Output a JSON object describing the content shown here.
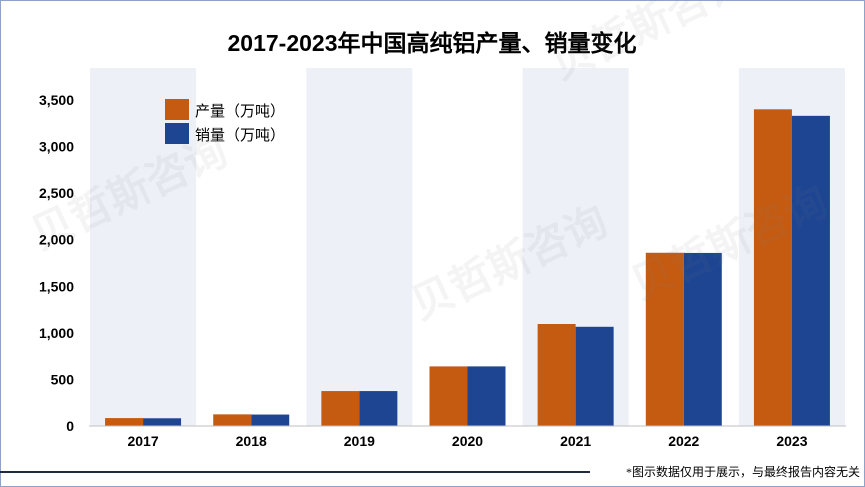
{
  "chart_data": {
    "type": "bar",
    "title": "2017-2023年中国高纯铝产量、销量变化",
    "xlabel": "",
    "ylabel": "",
    "categories": [
      "2017",
      "2018",
      "2019",
      "2020",
      "2021",
      "2022",
      "2023"
    ],
    "series": [
      {
        "name": "产量（万吨）",
        "color": "#C55A11",
        "values": [
          85,
          125,
          375,
          640,
          1095,
          1860,
          3400
        ]
      },
      {
        "name": "销量（万吨）",
        "color": "#1E4592",
        "values": [
          83,
          123,
          375,
          640,
          1065,
          1858,
          3330
        ]
      }
    ],
    "ylim": [
      0,
      3500
    ],
    "yticks": [
      {
        "value": 0,
        "label": "0"
      },
      {
        "value": 500,
        "label": "500"
      },
      {
        "value": 1000,
        "label": "1,000"
      },
      {
        "value": 1500,
        "label": "1,500"
      },
      {
        "value": 2000,
        "label": "2,000"
      },
      {
        "value": 2500,
        "label": "2,500"
      },
      {
        "value": 3000,
        "label": "3,000"
      },
      {
        "value": 3500,
        "label": "3,500"
      }
    ],
    "grid": false,
    "legend": "top-left",
    "colors": {
      "band": "#EDF1F7",
      "axis": "#BFBFBF",
      "rule": "#1F2A44",
      "border": "#8EA3C8"
    }
  },
  "footnote": "*图示数据仅用于展示，与最终报告内容无关",
  "watermark": "贝哲斯咨询"
}
